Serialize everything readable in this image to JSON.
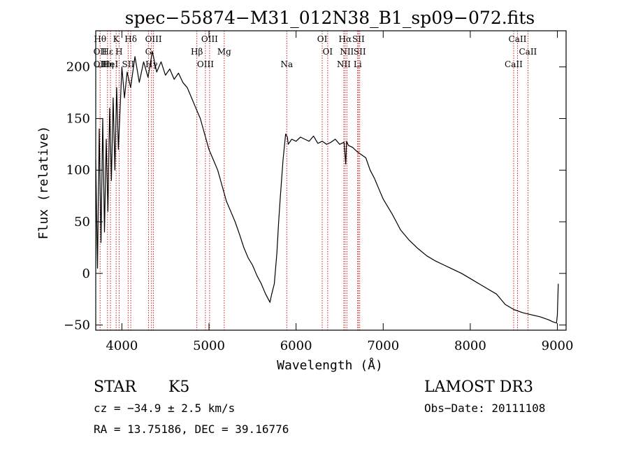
{
  "chart_data": {
    "type": "line",
    "title": "spec−55874−M31_012N38_B1_sp09−072.fits",
    "xlabel": "Wavelength (Å)",
    "ylabel": "Flux (relative)",
    "xlim": [
      3700,
      9100
    ],
    "ylim": [
      -55,
      235
    ],
    "xticks": [
      4000,
      5000,
      6000,
      7000,
      8000,
      9000
    ],
    "yticks": [
      -50,
      0,
      50,
      100,
      150,
      200
    ],
    "ytick_labels": [
      "−50",
      "0",
      "50",
      "100",
      "150",
      "200"
    ],
    "series": [
      {
        "name": "flux",
        "x": [
          3700,
          3720,
          3740,
          3760,
          3780,
          3800,
          3820,
          3840,
          3860,
          3880,
          3900,
          3920,
          3940,
          3960,
          3980,
          4000,
          4030,
          4060,
          4100,
          4150,
          4200,
          4250,
          4300,
          4350,
          4400,
          4450,
          4500,
          4550,
          4600,
          4650,
          4700,
          4750,
          4800,
          4850,
          4900,
          4950,
          5000,
          5050,
          5100,
          5150,
          5200,
          5250,
          5300,
          5350,
          5400,
          5450,
          5500,
          5550,
          5600,
          5650,
          5700,
          5720,
          5750,
          5780,
          5800,
          5820,
          5850,
          5880,
          5900,
          5910,
          5950,
          6000,
          6050,
          6100,
          6150,
          6200,
          6250,
          6300,
          6350,
          6400,
          6450,
          6500,
          6550,
          6570,
          6580,
          6600,
          6650,
          6700,
          6750,
          6800,
          6850,
          6900,
          6950,
          7000,
          7050,
          7100,
          7150,
          7200,
          7300,
          7400,
          7500,
          7600,
          7700,
          7800,
          7900,
          8000,
          8100,
          8200,
          8300,
          8400,
          8500,
          8600,
          8700,
          8800,
          8900,
          8950,
          8990,
          9000,
          9010
        ],
        "y": [
          110,
          5,
          140,
          30,
          150,
          40,
          130,
          60,
          160,
          90,
          170,
          100,
          180,
          120,
          160,
          200,
          170,
          195,
          180,
          210,
          185,
          205,
          190,
          215,
          195,
          205,
          192,
          198,
          188,
          194,
          185,
          180,
          170,
          160,
          150,
          135,
          120,
          110,
          100,
          85,
          70,
          60,
          50,
          38,
          25,
          15,
          8,
          -2,
          -10,
          -20,
          -28,
          -20,
          -10,
          20,
          50,
          75,
          110,
          135,
          132,
          125,
          130,
          128,
          132,
          130,
          128,
          133,
          126,
          128,
          125,
          127,
          130,
          125,
          127,
          106,
          128,
          124,
          122,
          118,
          115,
          112,
          100,
          92,
          82,
          72,
          65,
          58,
          50,
          42,
          32,
          24,
          17,
          12,
          8,
          4,
          0,
          -5,
          -10,
          -15,
          -20,
          -30,
          -35,
          -38,
          -40,
          -42,
          -45,
          -47,
          -48,
          -40,
          -10
        ]
      }
    ],
    "lines": [
      {
        "w": 3750,
        "labels": [
          "Hθ",
          "OII",
          "OII"
        ]
      },
      {
        "w": 3835,
        "labels": [
          "Hε",
          "Hη"
        ]
      },
      {
        "w": 3869,
        "labels": [
          "HeI"
        ]
      },
      {
        "w": 3934,
        "labels": [
          "K"
        ]
      },
      {
        "w": 3968,
        "labels": [
          "H"
        ]
      },
      {
        "w": 4072,
        "labels": [
          "SII"
        ]
      },
      {
        "w": 4102,
        "labels": [
          "Hδ"
        ]
      },
      {
        "w": 4305,
        "labels": [
          "G"
        ]
      },
      {
        "w": 4340,
        "labels": [
          "Hγ"
        ]
      },
      {
        "w": 4363,
        "labels": [
          "OIII"
        ]
      },
      {
        "w": 4861,
        "labels": [
          "Hβ"
        ]
      },
      {
        "w": 4959,
        "labels": [
          "OIII"
        ]
      },
      {
        "w": 5007,
        "labels": [
          "OIII"
        ]
      },
      {
        "w": 5175,
        "labels": [
          "Mg"
        ]
      },
      {
        "w": 5893,
        "labels": [
          "Na"
        ]
      },
      {
        "w": 6300,
        "labels": [
          "OI"
        ]
      },
      {
        "w": 6363,
        "labels": [
          "OI"
        ]
      },
      {
        "w": 6548,
        "labels": [
          "NII"
        ]
      },
      {
        "w": 6563,
        "labels": [
          "Hα"
        ]
      },
      {
        "w": 6583,
        "labels": [
          "NII"
        ]
      },
      {
        "w": 6707,
        "labels": [
          "Li"
        ]
      },
      {
        "w": 6716,
        "labels": [
          "SII"
        ]
      },
      {
        "w": 6731,
        "labels": [
          "SII"
        ]
      },
      {
        "w": 8498,
        "labels": [
          "CaII"
        ]
      },
      {
        "w": 8542,
        "labels": [
          "CaII"
        ]
      },
      {
        "w": 8662,
        "labels": [
          "CaII"
        ]
      }
    ],
    "colors": {
      "axis": "#000000",
      "series": "#000000",
      "lines": "#cc0000"
    }
  },
  "info": {
    "object_class": "STAR",
    "subclass": "K5",
    "survey": "LAMOST DR3",
    "redshift": "cz = −34.9 ± 2.5 km/s",
    "obs_date": "Obs−Date: 20111108",
    "coords": "RA =  13.75186, DEC =  39.16776"
  }
}
